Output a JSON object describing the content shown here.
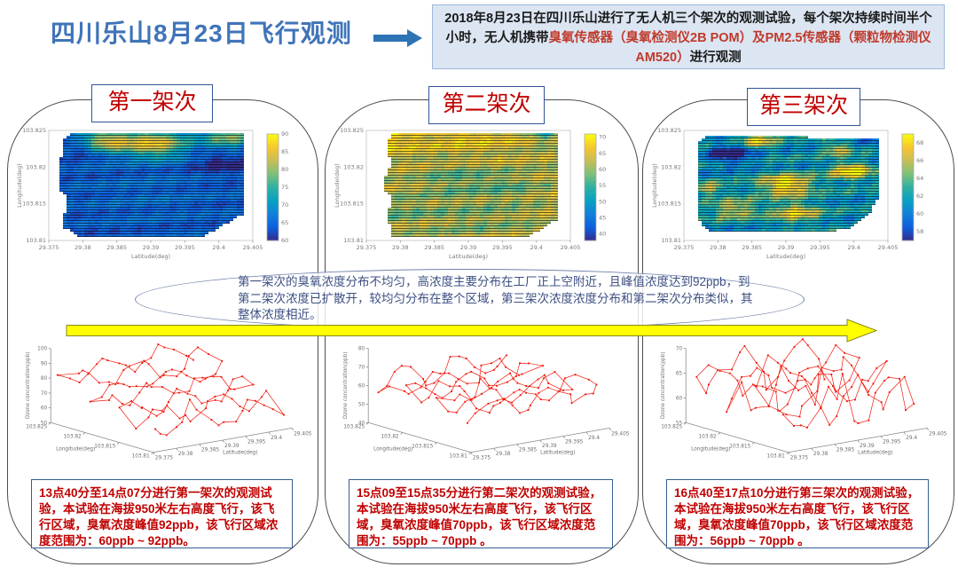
{
  "slide_title": "四川乐山8月23日飞行观测",
  "info_box": {
    "part1": "2018年8月23日在四川乐山进行了无人机三个架次的观测试验，每个架次持续时间半个小时，无人机携带",
    "part2_red": "臭氧传感器（臭氧检测仪2B POM）及PM2.5传感器（颗粒物检测仪AM520）",
    "part3": "进行观测"
  },
  "summary": "第一架次的臭氧浓度分布不均匀，高浓度主要分布在工厂正上空附近，且峰值浓度达到92ppb，到第二架次浓度已扩散开，较均匀分布在整个区域，第三架次浓度浓度分布和第二架次分布类似，其整体浓度相近。",
  "panels": [
    {
      "title": "第一架次",
      "note": "13点40分至14点07分进行第一架次的观测试验，本试验在海拔950米左右高度飞行，该飞行区域，臭氧浓度峰值92ppb，该飞行区域浓度范围为：60ppb ~ 92ppb。"
    },
    {
      "title": "第二架次",
      "note": "15点09至15点35分进行第二架次的观测试验，本试验在海拔950米左右高度飞行，该飞行区域，臭氧浓度峰值70ppb，该飞行区域浓度范围为：55ppb ~ 70ppb 。"
    },
    {
      "title": "第三架次",
      "note": "16点40至17点10分进行第三架次的观测试验，本试验在海拔950米左右高度飞行，该飞行区域，臭氧浓度峰值70ppb，该飞行区域浓度范围为：56ppb ~ 70ppb 。"
    }
  ],
  "colors": {
    "accent_blue": "#3f74b8",
    "title_red": "#c00000",
    "panel_border": "#4d4d4d",
    "note_border_blue": "#365f91",
    "info_bg": "#dce6f2",
    "arrow_yellow": "#ffff00",
    "series_red": "#f1180b"
  },
  "chart_data": [
    {
      "type": "heatmap",
      "panel": "第一架次",
      "x_label": "Latitude(deg)",
      "y_label": "Longitude(deg)",
      "x_ticks": [
        "29.375",
        "29.38",
        "29.385",
        "29.39",
        "29.395",
        "29.4",
        "29.405"
      ],
      "y_ticks": [
        "103.81",
        "103.815",
        "103.82",
        "103.825"
      ],
      "colorbar_ticks": [
        60,
        65,
        70,
        75,
        80,
        85,
        90
      ],
      "colorbar_range": [
        60,
        90
      ],
      "value_base": 64,
      "noise": 1.6,
      "seed": 7,
      "region": [
        [
          0.07,
          0.1
        ],
        [
          0.1,
          0.03
        ],
        [
          0.96,
          0.03
        ],
        [
          0.96,
          0.75
        ],
        [
          0.76,
          0.96
        ],
        [
          0.14,
          0.96
        ],
        [
          0.065,
          0.87
        ],
        [
          0.095,
          0.6
        ],
        [
          0.06,
          0.55
        ],
        [
          0.06,
          0.25
        ]
      ],
      "hotspots": [
        [
          0.28,
          0.1,
          0.09,
          19
        ],
        [
          0.52,
          0.12,
          0.11,
          21
        ],
        [
          0.88,
          0.07,
          0.09,
          15
        ],
        [
          0.17,
          0.17,
          0.06,
          -5
        ],
        [
          0.84,
          0.3,
          0.09,
          -5
        ],
        [
          0.5,
          0.6,
          0.3,
          2
        ]
      ]
    },
    {
      "type": "heatmap",
      "panel": "第二架次",
      "x_label": "Latitude(deg)",
      "y_label": "Longitude(deg)",
      "x_ticks": [
        "29.375",
        "29.38",
        "29.385",
        "29.39",
        "29.395",
        "29.4",
        "29.405"
      ],
      "y_ticks": [
        "103.81",
        "103.815",
        "103.82",
        "103.825"
      ],
      "colorbar_ticks": [
        40,
        45,
        50,
        55,
        60,
        65,
        70
      ],
      "colorbar_range": [
        38,
        71
      ],
      "value_base": 63,
      "noise": 2.5,
      "seed": 13,
      "region": [
        [
          0.1,
          0.1
        ],
        [
          0.13,
          0.02
        ],
        [
          0.94,
          0.02
        ],
        [
          0.94,
          0.8
        ],
        [
          0.8,
          0.96
        ],
        [
          0.13,
          0.96
        ],
        [
          0.1,
          0.78
        ],
        [
          0.13,
          0.6
        ],
        [
          0.085,
          0.55
        ],
        [
          0.1,
          0.35
        ],
        [
          0.13,
          0.3
        ],
        [
          0.1,
          0.2
        ]
      ],
      "hotspots": [
        [
          0.12,
          0.08,
          0.1,
          6
        ],
        [
          0.5,
          0.04,
          0.15,
          5
        ],
        [
          0.88,
          0.04,
          0.05,
          -9
        ],
        [
          0.45,
          0.45,
          0.12,
          -5
        ],
        [
          0.7,
          0.5,
          0.1,
          -4
        ],
        [
          0.18,
          0.72,
          0.12,
          -4
        ],
        [
          0.55,
          0.8,
          0.15,
          -3
        ]
      ]
    },
    {
      "type": "heatmap",
      "panel": "第三架次",
      "x_label": "Latitude(deg)",
      "y_label": "Longitude(deg)",
      "x_ticks": [
        "29.375",
        "29.38",
        "29.385",
        "29.39",
        "29.395",
        "29.4",
        "29.405"
      ],
      "y_ticks": [
        "103.81",
        "103.815",
        "103.82",
        "103.825"
      ],
      "colorbar_ticks": [
        58,
        60,
        62,
        64,
        66,
        68
      ],
      "colorbar_range": [
        57,
        69
      ],
      "value_base": 61.5,
      "noise": 1.2,
      "seed": 21,
      "region": [
        [
          0.065,
          0.13
        ],
        [
          0.12,
          0.04
        ],
        [
          0.6,
          0.04
        ],
        [
          0.62,
          0.08
        ],
        [
          0.95,
          0.08
        ],
        [
          0.95,
          0.62
        ],
        [
          0.9,
          0.78
        ],
        [
          0.82,
          0.88
        ],
        [
          0.72,
          0.92
        ],
        [
          0.12,
          0.92
        ],
        [
          0.065,
          0.8
        ]
      ],
      "hotspots": [
        [
          0.37,
          0.1,
          0.06,
          6
        ],
        [
          0.75,
          0.17,
          0.05,
          5
        ],
        [
          0.82,
          0.37,
          0.07,
          8
        ],
        [
          0.5,
          0.5,
          0.09,
          8
        ],
        [
          0.12,
          0.53,
          0.05,
          5
        ],
        [
          0.25,
          0.72,
          0.08,
          5
        ],
        [
          0.55,
          0.75,
          0.08,
          6
        ],
        [
          0.23,
          0.22,
          0.08,
          -5
        ],
        [
          0.9,
          0.07,
          0.04,
          -3
        ]
      ]
    },
    {
      "type": "line3d",
      "panel": "第一架次",
      "x_label": "Latitude(deg)",
      "y_label": "Longitude(deg)",
      "z_label": "Ozone concentration(ppb)",
      "x_ticks": [
        "29.375",
        "29.38",
        "29.385",
        "29.39",
        "29.395",
        "29.4",
        "29.405"
      ],
      "y_ticks": [
        "103.81",
        "103.815",
        "103.82",
        "103.825"
      ],
      "z_ticks": [
        50,
        60,
        70,
        80,
        90,
        100
      ],
      "z_axis_range": [
        50,
        100
      ],
      "traj": {
        "rows": 7,
        "cols": 17,
        "base": 64,
        "trend": 20,
        "wobble": 6,
        "noise": 6,
        "spike": 10,
        "spike_p": 0.07,
        "clamp": [
          58,
          100
        ],
        "seed": 3
      }
    },
    {
      "type": "line3d",
      "panel": "第二架次",
      "x_label": "Latitude(deg)",
      "y_label": "Longitude(deg)",
      "z_label": "Ozone concentration(ppb)",
      "x_ticks": [
        "29.375",
        "29.38",
        "29.385",
        "29.39",
        "29.395",
        "29.4",
        "29.405"
      ],
      "y_ticks": [
        "103.81",
        "103.815",
        "103.82",
        "103.825"
      ],
      "z_ticks": [
        40,
        50,
        60,
        70,
        80
      ],
      "z_axis_range": [
        40,
        80
      ],
      "traj": {
        "rows": 7,
        "cols": 17,
        "base": 60,
        "trend": 2,
        "wobble": 5,
        "noise": 4,
        "spike": 6,
        "spike_p": 0.04,
        "clamp": [
          48,
          72
        ],
        "seed": 5
      }
    },
    {
      "type": "line3d",
      "panel": "第三架次",
      "x_label": "Latitude(deg)",
      "y_label": "Longitude(deg)",
      "z_label": "Ozone concentration(ppb)",
      "x_ticks": [
        "29.375",
        "29.38",
        "29.385",
        "29.39",
        "29.395",
        "29.4",
        "29.405"
      ],
      "y_ticks": [
        "103.81",
        "103.815",
        "103.82",
        "103.825"
      ],
      "z_ticks": [
        55,
        60,
        65,
        70
      ],
      "z_axis_range": [
        55,
        70
      ],
      "traj": {
        "rows": 7,
        "cols": 17,
        "base": 62,
        "trend": 2,
        "wobble": 3.5,
        "noise": 4,
        "spike": 6,
        "spike_p": 0.08,
        "clamp": [
          56,
          70.5
        ],
        "seed": 9
      }
    }
  ]
}
